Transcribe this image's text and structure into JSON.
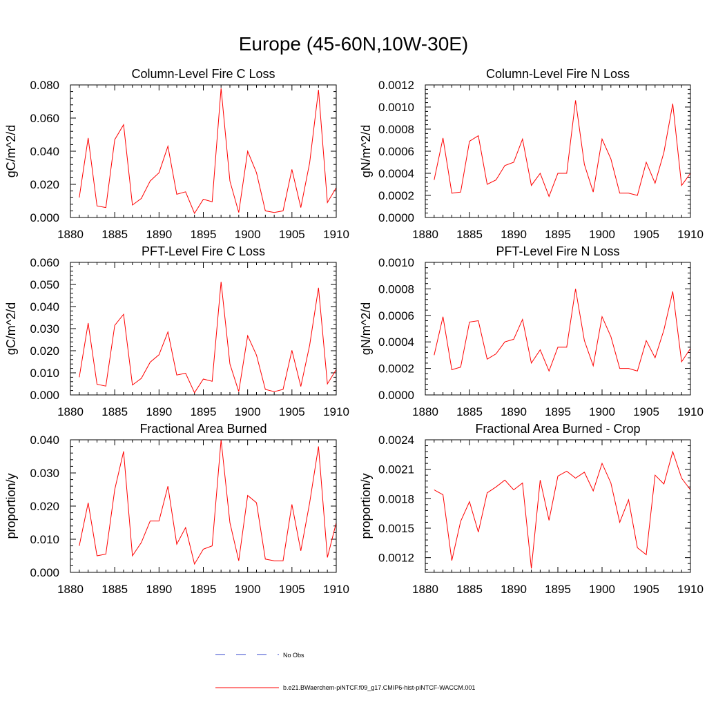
{
  "title": "Europe (45-60N,10W-30E)",
  "legend": [
    {
      "label": "No Obs",
      "color": "#3344cc",
      "dash": true
    },
    {
      "label": "b.e21.BWaerchem-piNTCF.f09_g17.CMIP6-hist-piNTCF-WACCM.001",
      "color": "#ff0000",
      "dash": false
    }
  ],
  "chart_data": [
    {
      "type": "line",
      "title": "Column-Level Fire C Loss",
      "ylabel": "gC/m^2/d",
      "xlim": [
        1880,
        1910
      ],
      "ylim": [
        0,
        0.08
      ],
      "xticks": [
        1880,
        1885,
        1890,
        1895,
        1900,
        1905,
        1910
      ],
      "xtick_labels": [
        "1880",
        "1885",
        "1890",
        "1895",
        "1900",
        "1905",
        "1910"
      ],
      "yticks": [
        0,
        0.02,
        0.04,
        0.06,
        0.08
      ],
      "ytick_labels": [
        "0.000",
        "0.020",
        "0.040",
        "0.060",
        "0.080"
      ],
      "series": [
        {
          "color": "#ff0000",
          "x": [
            1881,
            1882,
            1883,
            1884,
            1885,
            1886,
            1887,
            1888,
            1889,
            1890,
            1891,
            1892,
            1893,
            1894,
            1895,
            1896,
            1897,
            1898,
            1899,
            1900,
            1901,
            1902,
            1903,
            1904,
            1905,
            1906,
            1907,
            1908,
            1909,
            1910
          ],
          "y": [
            0.012,
            0.048,
            0.007,
            0.006,
            0.047,
            0.056,
            0.0075,
            0.0115,
            0.022,
            0.027,
            0.043,
            0.014,
            0.0155,
            0.0025,
            0.011,
            0.0095,
            0.078,
            0.022,
            0.003,
            0.04,
            0.027,
            0.004,
            0.003,
            0.004,
            0.029,
            0.006,
            0.033,
            0.077,
            0.009,
            0.018
          ]
        }
      ]
    },
    {
      "type": "line",
      "title": "Column-Level Fire N Loss",
      "ylabel": "gN/m^2/d",
      "xlim": [
        1880,
        1910
      ],
      "ylim": [
        0,
        0.0012
      ],
      "xticks": [
        1880,
        1885,
        1890,
        1895,
        1900,
        1905,
        1910
      ],
      "xtick_labels": [
        "1880",
        "1885",
        "1890",
        "1895",
        "1900",
        "1905",
        "1910"
      ],
      "yticks": [
        0,
        0.0002,
        0.0004,
        0.0006,
        0.0008,
        0.001,
        0.0012
      ],
      "ytick_labels": [
        "0.0000",
        "0.0002",
        "0.0004",
        "0.0006",
        "0.0008",
        "0.0010",
        "0.0012"
      ],
      "series": [
        {
          "color": "#ff0000",
          "x": [
            1881,
            1882,
            1883,
            1884,
            1885,
            1886,
            1887,
            1888,
            1889,
            1890,
            1891,
            1892,
            1893,
            1894,
            1895,
            1896,
            1897,
            1898,
            1899,
            1900,
            1901,
            1902,
            1903,
            1904,
            1905,
            1906,
            1907,
            1908,
            1909,
            1910
          ],
          "y": [
            0.00034,
            0.00072,
            0.00022,
            0.00023,
            0.00069,
            0.00074,
            0.0003,
            0.00034,
            0.00047,
            0.0005,
            0.00071,
            0.00029,
            0.0004,
            0.00019,
            0.0004,
            0.0004,
            0.00106,
            0.00048,
            0.00023,
            0.00071,
            0.00053,
            0.00022,
            0.00022,
            0.0002,
            0.0005,
            0.00031,
            0.00059,
            0.00103,
            0.00029,
            0.0004
          ]
        }
      ]
    },
    {
      "type": "line",
      "title": "PFT-Level Fire C Loss",
      "ylabel": "gC/m^2/d",
      "xlim": [
        1880,
        1910
      ],
      "ylim": [
        0,
        0.06
      ],
      "xticks": [
        1880,
        1885,
        1890,
        1895,
        1900,
        1905,
        1910
      ],
      "xtick_labels": [
        "1880",
        "1885",
        "1890",
        "1895",
        "1900",
        "1905",
        "1910"
      ],
      "yticks": [
        0,
        0.01,
        0.02,
        0.03,
        0.04,
        0.05,
        0.06
      ],
      "ytick_labels": [
        "0.000",
        "0.010",
        "0.020",
        "0.030",
        "0.040",
        "0.050",
        "0.060"
      ],
      "series": [
        {
          "color": "#ff0000",
          "x": [
            1881,
            1882,
            1883,
            1884,
            1885,
            1886,
            1887,
            1888,
            1889,
            1890,
            1891,
            1892,
            1893,
            1894,
            1895,
            1896,
            1897,
            1898,
            1899,
            1900,
            1901,
            1902,
            1903,
            1904,
            1905,
            1906,
            1907,
            1908,
            1909,
            1910
          ],
          "y": [
            0.008,
            0.0325,
            0.0048,
            0.004,
            0.0315,
            0.0365,
            0.0045,
            0.0075,
            0.0148,
            0.0182,
            0.0285,
            0.009,
            0.0098,
            0.001,
            0.0072,
            0.0062,
            0.0512,
            0.014,
            0.0015,
            0.0268,
            0.018,
            0.0025,
            0.0015,
            0.0025,
            0.0202,
            0.0038,
            0.0225,
            0.0485,
            0.005,
            0.0115
          ]
        }
      ]
    },
    {
      "type": "line",
      "title": "PFT-Level Fire N Loss",
      "ylabel": "gN/m^2/d",
      "xlim": [
        1880,
        1910
      ],
      "ylim": [
        0,
        0.001
      ],
      "xticks": [
        1880,
        1885,
        1890,
        1895,
        1900,
        1905,
        1910
      ],
      "xtick_labels": [
        "1880",
        "1885",
        "1890",
        "1895",
        "1900",
        "1905",
        "1910"
      ],
      "yticks": [
        0,
        0.0002,
        0.0004,
        0.0006,
        0.0008,
        0.001
      ],
      "ytick_labels": [
        "0.0000",
        "0.0002",
        "0.0004",
        "0.0006",
        "0.0008",
        "0.0010"
      ],
      "series": [
        {
          "color": "#ff0000",
          "x": [
            1881,
            1882,
            1883,
            1884,
            1885,
            1886,
            1887,
            1888,
            1889,
            1890,
            1891,
            1892,
            1893,
            1894,
            1895,
            1896,
            1897,
            1898,
            1899,
            1900,
            1901,
            1902,
            1903,
            1904,
            1905,
            1906,
            1907,
            1908,
            1909,
            1910
          ],
          "y": [
            0.0003,
            0.00059,
            0.00019,
            0.00021,
            0.00055,
            0.00056,
            0.00027,
            0.00031,
            0.0004,
            0.00042,
            0.00057,
            0.00024,
            0.00034,
            0.00018,
            0.00036,
            0.00036,
            0.0008,
            0.00041,
            0.00022,
            0.00059,
            0.00044,
            0.0002,
            0.0002,
            0.00018,
            0.00041,
            0.00028,
            0.00049,
            0.00078,
            0.00025,
            0.00035
          ]
        }
      ]
    },
    {
      "type": "line",
      "title": "Fractional Area Burned",
      "ylabel": "proportion/y",
      "xlim": [
        1880,
        1910
      ],
      "ylim": [
        0,
        0.04
      ],
      "xticks": [
        1880,
        1885,
        1890,
        1895,
        1900,
        1905,
        1910
      ],
      "xtick_labels": [
        "1880",
        "1885",
        "1890",
        "1895",
        "1900",
        "1905",
        "1910"
      ],
      "yticks": [
        0,
        0.01,
        0.02,
        0.03,
        0.04
      ],
      "ytick_labels": [
        "0.000",
        "0.010",
        "0.020",
        "0.030",
        "0.040"
      ],
      "series": [
        {
          "color": "#ff0000",
          "x": [
            1881,
            1882,
            1883,
            1884,
            1885,
            1886,
            1887,
            1888,
            1889,
            1890,
            1891,
            1892,
            1893,
            1894,
            1895,
            1896,
            1897,
            1898,
            1899,
            1900,
            1901,
            1902,
            1903,
            1904,
            1905,
            1906,
            1907,
            1908,
            1909,
            1910
          ],
          "y": [
            0.008,
            0.021,
            0.005,
            0.0055,
            0.025,
            0.0365,
            0.005,
            0.009,
            0.0155,
            0.0155,
            0.026,
            0.0085,
            0.0135,
            0.0025,
            0.007,
            0.008,
            0.04,
            0.015,
            0.0035,
            0.0232,
            0.021,
            0.004,
            0.0035,
            0.0035,
            0.0205,
            0.0065,
            0.021,
            0.038,
            0.0045,
            0.015
          ]
        }
      ]
    },
    {
      "type": "line",
      "title": "Fractional Area Burned - Crop",
      "ylabel": "proportion/y",
      "xlim": [
        1880,
        1910
      ],
      "ylim": [
        0.00105,
        0.0024
      ],
      "xticks": [
        1880,
        1885,
        1890,
        1895,
        1900,
        1905,
        1910
      ],
      "xtick_labels": [
        "1880",
        "1885",
        "1890",
        "1895",
        "1900",
        "1905",
        "1910"
      ],
      "yticks": [
        0.0012,
        0.0015,
        0.0018,
        0.0021,
        0.0024
      ],
      "ytick_labels": [
        "0.0012",
        "0.0015",
        "0.0018",
        "0.0021",
        "0.0024"
      ],
      "series": [
        {
          "color": "#ff0000",
          "x": [
            1881,
            1882,
            1883,
            1884,
            1885,
            1886,
            1887,
            1888,
            1889,
            1890,
            1891,
            1892,
            1893,
            1894,
            1895,
            1896,
            1897,
            1898,
            1899,
            1900,
            1901,
            1902,
            1903,
            1904,
            1905,
            1906,
            1907,
            1908,
            1909,
            1910
          ],
          "y": [
            0.00189,
            0.00184,
            0.00117,
            0.00157,
            0.00177,
            0.00146,
            0.00186,
            0.00192,
            0.00199,
            0.00189,
            0.00196,
            0.00109,
            0.00199,
            0.00158,
            0.00203,
            0.00208,
            0.00201,
            0.00207,
            0.00188,
            0.00216,
            0.00196,
            0.00156,
            0.00179,
            0.0013,
            0.00123,
            0.00204,
            0.00195,
            0.00228,
            0.00201,
            0.00189
          ]
        }
      ]
    }
  ]
}
